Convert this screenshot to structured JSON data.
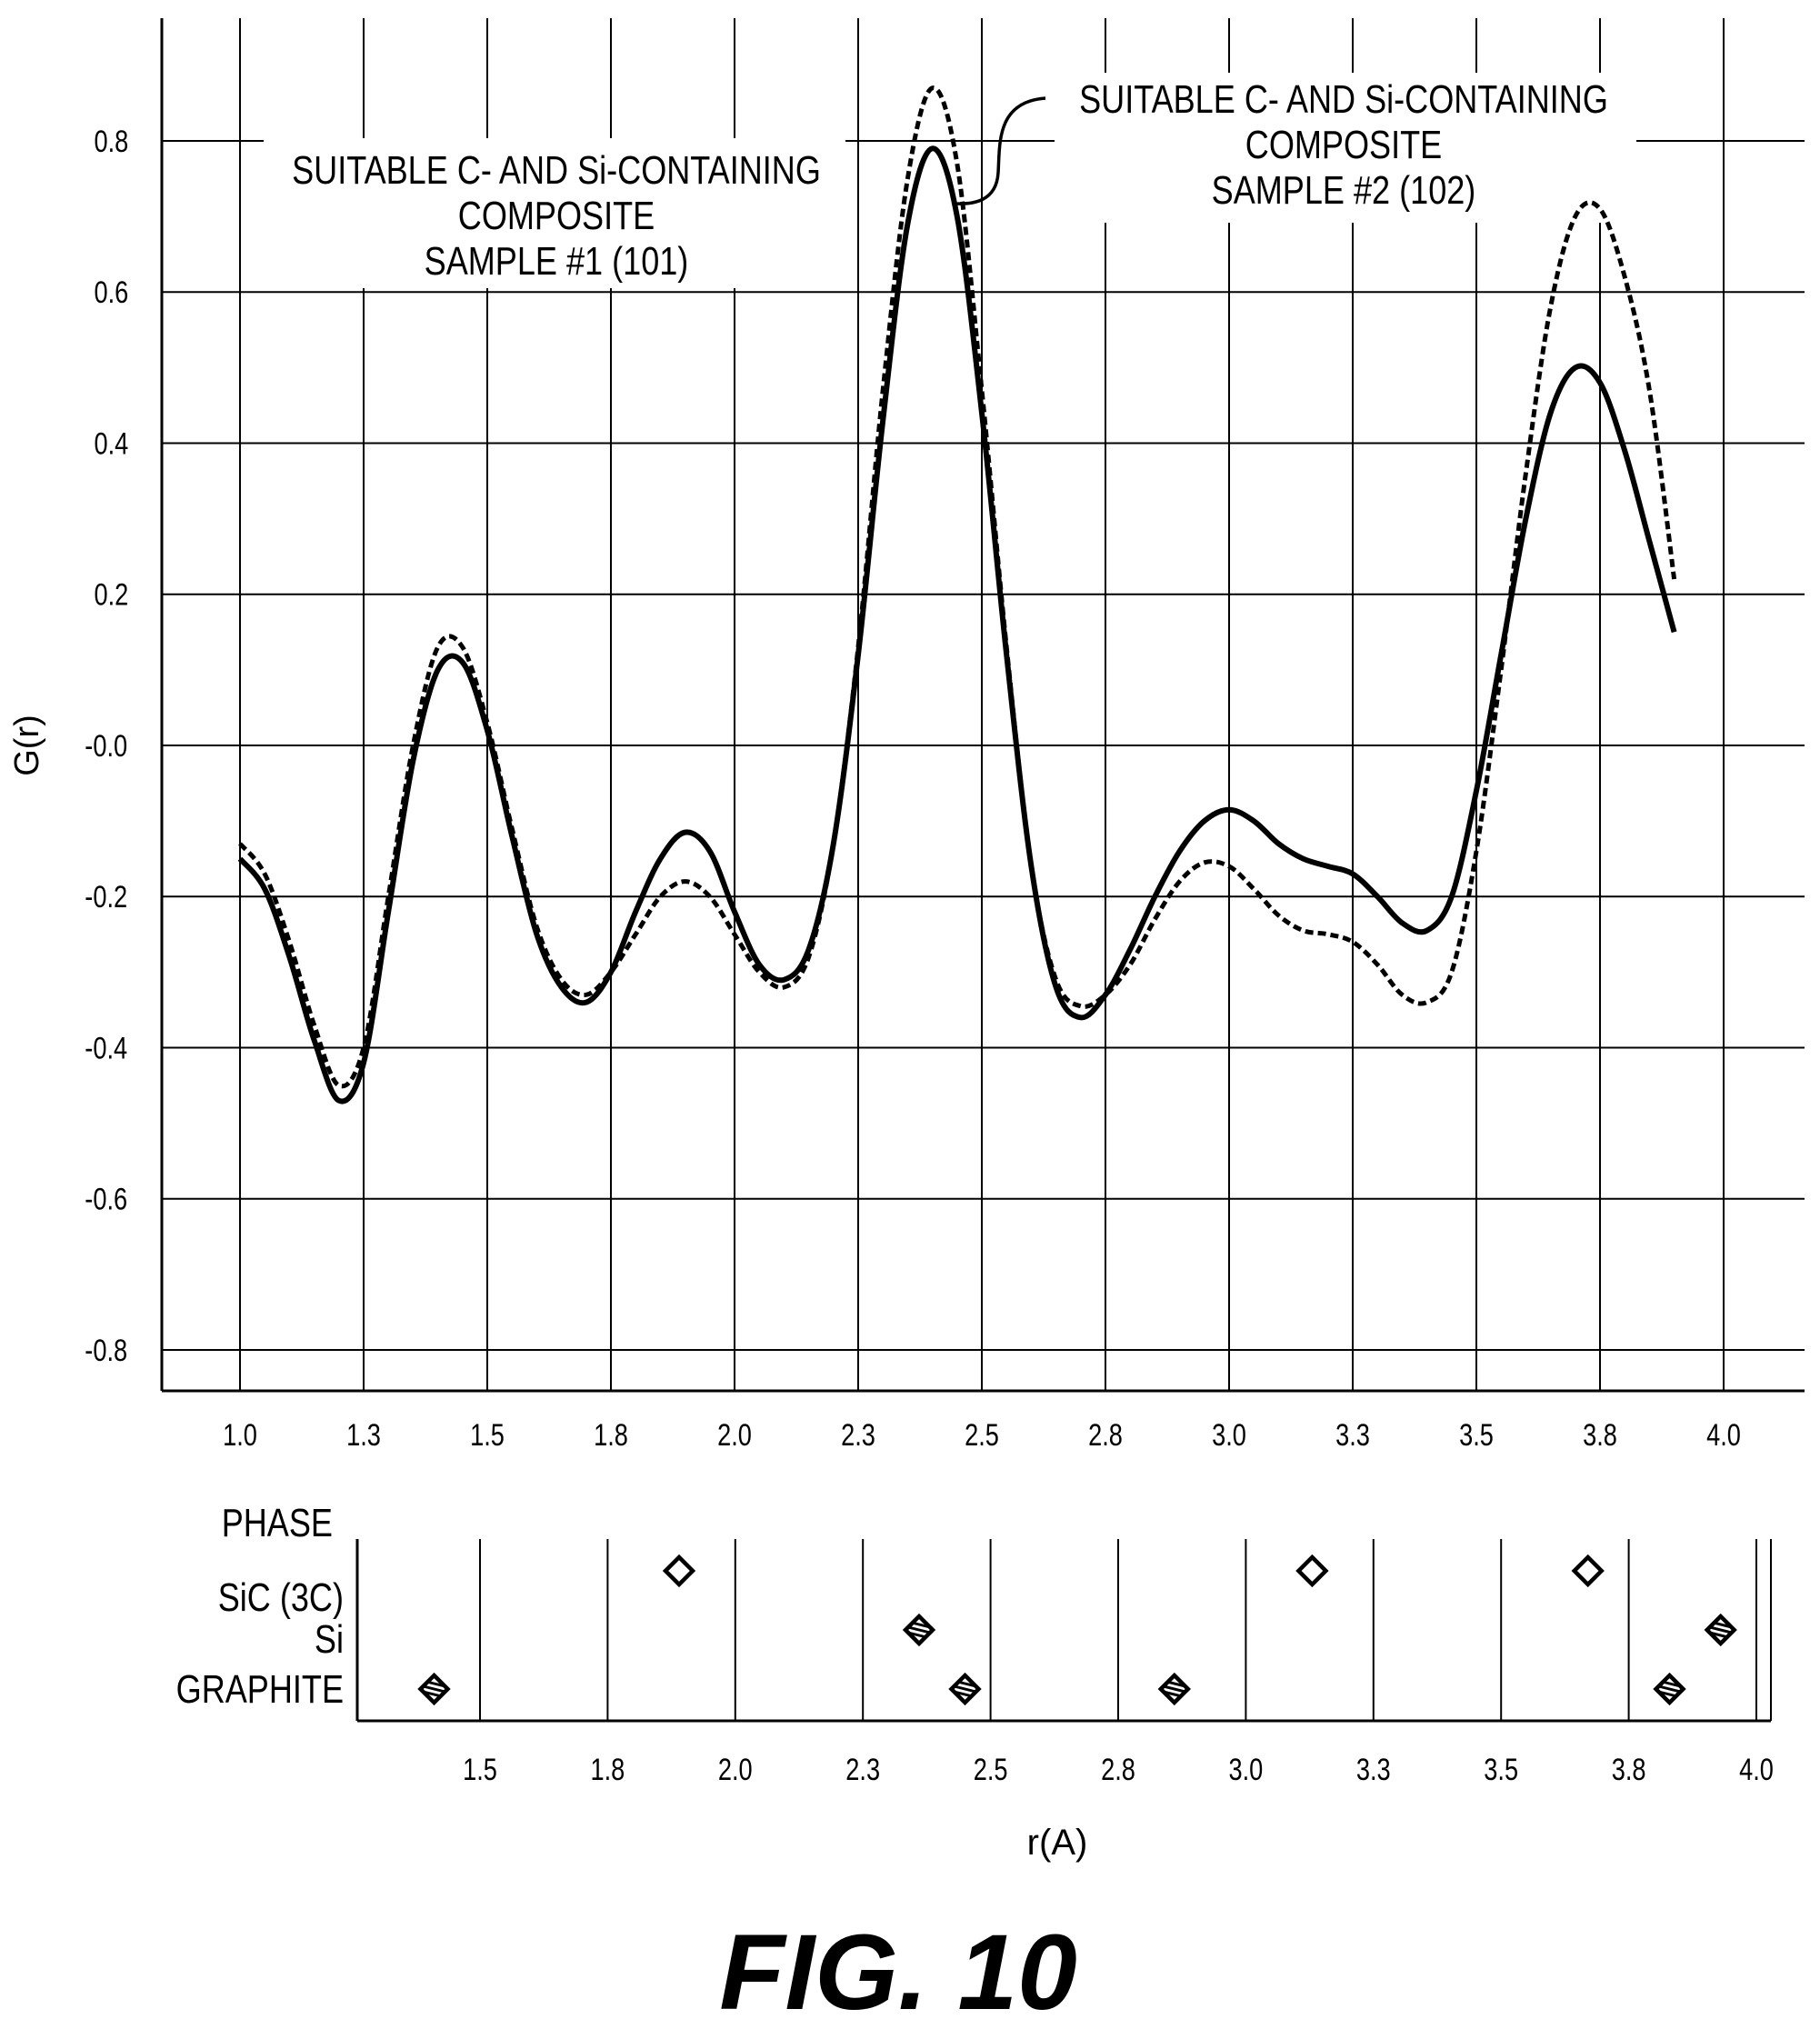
{
  "figure_label": "FIG. 10",
  "chart_data": [
    {
      "type": "line",
      "title": "",
      "xlabel": "",
      "ylabel": "G(r)",
      "xlim": [
        1.0,
        4.0
      ],
      "ylim": [
        -0.8,
        0.8
      ],
      "x_tick_labels": [
        "1.0",
        "1.3",
        "1.5",
        "1.8",
        "2.0",
        "2.3",
        "2.5",
        "2.8",
        "3.0",
        "3.3",
        "3.5",
        "3.8",
        "4.0"
      ],
      "y_tick_labels": [
        "0.8",
        "0.6",
        "0.4",
        "0.2",
        "-0.0",
        "-0.2",
        "-0.4",
        "-0.6",
        "-0.8"
      ],
      "grid": true,
      "annotations": {
        "sample1": [
          "SUITABLE C- AND Si-CONTAINING",
          "COMPOSITE",
          "SAMPLE #1 (101)"
        ],
        "sample2": [
          "SUITABLE C- AND Si-CONTAINING",
          "COMPOSITE",
          "SAMPLE #2 (102)"
        ]
      },
      "series": [
        {
          "style": "solid",
          "color": "#000000",
          "points": [
            [
              1.0,
              -0.15
            ],
            [
              1.05,
              -0.19
            ],
            [
              1.1,
              -0.28
            ],
            [
              1.15,
              -0.39
            ],
            [
              1.2,
              -0.47
            ],
            [
              1.25,
              -0.42
            ],
            [
              1.3,
              -0.22
            ],
            [
              1.35,
              -0.02
            ],
            [
              1.4,
              0.1
            ],
            [
              1.45,
              0.11
            ],
            [
              1.5,
              0.02
            ],
            [
              1.55,
              -0.12
            ],
            [
              1.6,
              -0.25
            ],
            [
              1.65,
              -0.32
            ],
            [
              1.7,
              -0.34
            ],
            [
              1.75,
              -0.3
            ],
            [
              1.8,
              -0.22
            ],
            [
              1.85,
              -0.15
            ],
            [
              1.9,
              -0.115
            ],
            [
              1.95,
              -0.14
            ],
            [
              2.0,
              -0.22
            ],
            [
              2.05,
              -0.29
            ],
            [
              2.1,
              -0.31
            ],
            [
              2.15,
              -0.27
            ],
            [
              2.2,
              -0.13
            ],
            [
              2.25,
              0.12
            ],
            [
              2.3,
              0.43
            ],
            [
              2.35,
              0.69
            ],
            [
              2.4,
              0.79
            ],
            [
              2.45,
              0.7
            ],
            [
              2.5,
              0.44
            ],
            [
              2.55,
              0.12
            ],
            [
              2.6,
              -0.16
            ],
            [
              2.65,
              -0.32
            ],
            [
              2.7,
              -0.36
            ],
            [
              2.75,
              -0.33
            ],
            [
              2.8,
              -0.27
            ],
            [
              2.85,
              -0.2
            ],
            [
              2.9,
              -0.14
            ],
            [
              2.95,
              -0.1
            ],
            [
              3.0,
              -0.085
            ],
            [
              3.05,
              -0.1
            ],
            [
              3.1,
              -0.13
            ],
            [
              3.15,
              -0.15
            ],
            [
              3.2,
              -0.16
            ],
            [
              3.25,
              -0.17
            ],
            [
              3.3,
              -0.2
            ],
            [
              3.35,
              -0.235
            ],
            [
              3.4,
              -0.245
            ],
            [
              3.45,
              -0.2
            ],
            [
              3.5,
              -0.06
            ],
            [
              3.55,
              0.12
            ],
            [
              3.6,
              0.3
            ],
            [
              3.65,
              0.44
            ],
            [
              3.7,
              0.5
            ],
            [
              3.75,
              0.48
            ],
            [
              3.8,
              0.39
            ],
            [
              3.85,
              0.27
            ],
            [
              3.9,
              0.15
            ]
          ]
        },
        {
          "style": "dashed",
          "color": "#000000",
          "points": [
            [
              1.0,
              -0.13
            ],
            [
              1.05,
              -0.17
            ],
            [
              1.1,
              -0.26
            ],
            [
              1.15,
              -0.37
            ],
            [
              1.2,
              -0.45
            ],
            [
              1.25,
              -0.4
            ],
            [
              1.3,
              -0.2
            ],
            [
              1.35,
              0.0
            ],
            [
              1.4,
              0.13
            ],
            [
              1.45,
              0.13
            ],
            [
              1.5,
              0.03
            ],
            [
              1.55,
              -0.11
            ],
            [
              1.6,
              -0.24
            ],
            [
              1.65,
              -0.31
            ],
            [
              1.7,
              -0.33
            ],
            [
              1.75,
              -0.3
            ],
            [
              1.8,
              -0.25
            ],
            [
              1.85,
              -0.2
            ],
            [
              1.9,
              -0.18
            ],
            [
              1.95,
              -0.2
            ],
            [
              2.0,
              -0.25
            ],
            [
              2.05,
              -0.3
            ],
            [
              2.1,
              -0.32
            ],
            [
              2.15,
              -0.28
            ],
            [
              2.2,
              -0.13
            ],
            [
              2.25,
              0.13
            ],
            [
              2.3,
              0.47
            ],
            [
              2.35,
              0.75
            ],
            [
              2.4,
              0.87
            ],
            [
              2.45,
              0.77
            ],
            [
              2.5,
              0.47
            ],
            [
              2.55,
              0.13
            ],
            [
              2.6,
              -0.16
            ],
            [
              2.65,
              -0.31
            ],
            [
              2.7,
              -0.345
            ],
            [
              2.75,
              -0.33
            ],
            [
              2.8,
              -0.29
            ],
            [
              2.85,
              -0.23
            ],
            [
              2.9,
              -0.18
            ],
            [
              2.95,
              -0.155
            ],
            [
              3.0,
              -0.16
            ],
            [
              3.05,
              -0.19
            ],
            [
              3.1,
              -0.225
            ],
            [
              3.15,
              -0.245
            ],
            [
              3.2,
              -0.25
            ],
            [
              3.25,
              -0.26
            ],
            [
              3.3,
              -0.29
            ],
            [
              3.35,
              -0.33
            ],
            [
              3.4,
              -0.34
            ],
            [
              3.45,
              -0.3
            ],
            [
              3.5,
              -0.14
            ],
            [
              3.55,
              0.1
            ],
            [
              3.6,
              0.36
            ],
            [
              3.65,
              0.58
            ],
            [
              3.7,
              0.7
            ],
            [
              3.75,
              0.71
            ],
            [
              3.8,
              0.62
            ],
            [
              3.85,
              0.47
            ],
            [
              3.9,
              0.22
            ]
          ]
        }
      ]
    },
    {
      "type": "scatter",
      "title": "",
      "xlabel": "r(A)",
      "ylabel": "PHASE",
      "xlim": [
        1.24,
        4.04
      ],
      "x_tick_labels": [
        "1.5",
        "1.8",
        "2.0",
        "2.3",
        "2.5",
        "2.8",
        "3.0",
        "3.3",
        "3.5",
        "3.8",
        "4.0"
      ],
      "categories": [
        "SiC (3C)",
        "Si",
        "GRAPHITE"
      ],
      "grid": true,
      "series": [
        {
          "name": "SiC (3C)",
          "marker": "open-diamond",
          "x": [
            1.89,
            3.13,
            3.67
          ]
        },
        {
          "name": "Si",
          "marker": "hatched-diamond",
          "x": [
            2.36,
            3.93
          ]
        },
        {
          "name": "GRAPHITE",
          "marker": "hatched-diamond",
          "x": [
            1.41,
            2.45,
            2.86,
            3.83
          ]
        }
      ]
    }
  ]
}
